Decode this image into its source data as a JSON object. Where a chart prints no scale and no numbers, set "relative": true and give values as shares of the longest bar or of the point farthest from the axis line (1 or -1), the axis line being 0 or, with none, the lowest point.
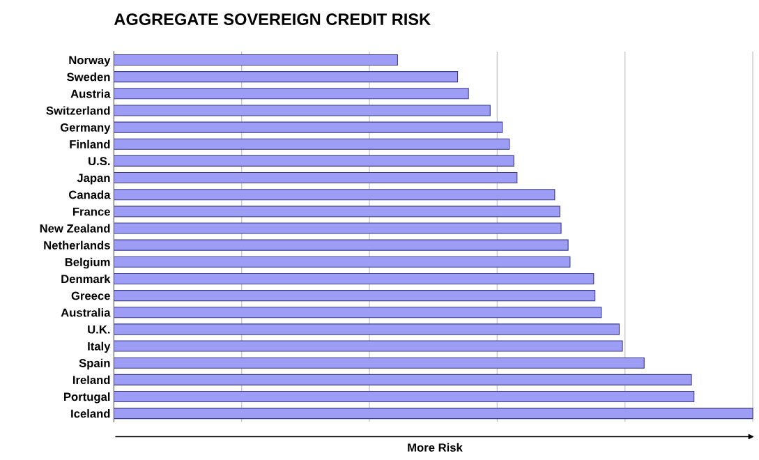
{
  "chart_data": {
    "type": "bar",
    "orientation": "horizontal",
    "relative": true,
    "title": "AGGREGATE SOVEREIGN CREDIT RISK",
    "xlabel": "More Risk",
    "categories": [
      "Norway",
      "Sweden",
      "Austria",
      "Switzerland",
      "Germany",
      "Finland",
      "U.S.",
      "Japan",
      "Canada",
      "France",
      "New Zealand",
      "Netherlands",
      "Belgium",
      "Denmark",
      "Greece",
      "Australia",
      "U.K.",
      "Italy",
      "Spain",
      "Ireland",
      "Portugal",
      "Iceland"
    ],
    "values": [
      0.444,
      0.538,
      0.555,
      0.589,
      0.608,
      0.619,
      0.626,
      0.631,
      0.69,
      0.698,
      0.7,
      0.711,
      0.714,
      0.751,
      0.753,
      0.763,
      0.791,
      0.796,
      0.83,
      0.904,
      0.908,
      1
    ],
    "color": "#9d9df5",
    "grid": "x"
  }
}
